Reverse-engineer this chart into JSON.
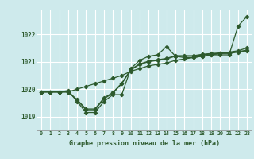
{
  "title": "Graphe pression niveau de la mer (hPa)",
  "bg_color": "#ceeaec",
  "grid_color": "#b8d8db",
  "line_color": "#2d5a2d",
  "xlim": [
    -0.5,
    23.5
  ],
  "ylim": [
    1018.5,
    1022.9
  ],
  "yticks": [
    1019,
    1020,
    1021,
    1022
  ],
  "xticks": [
    0,
    1,
    2,
    3,
    4,
    5,
    6,
    7,
    8,
    9,
    10,
    11,
    12,
    13,
    14,
    15,
    16,
    17,
    18,
    19,
    20,
    21,
    22,
    23
  ],
  "series1_x": [
    0,
    1,
    2,
    3,
    4,
    5,
    6,
    7,
    8,
    9,
    10,
    11,
    12,
    13,
    14,
    15,
    16,
    17,
    18,
    19,
    20,
    21,
    22,
    23
  ],
  "series1_y": [
    1019.9,
    1019.9,
    1019.9,
    1019.95,
    1019.55,
    1019.15,
    1019.15,
    1019.55,
    1019.8,
    1019.8,
    1020.75,
    1021.05,
    1021.2,
    1021.25,
    1021.55,
    1021.2,
    1021.15,
    1021.15,
    1021.2,
    1021.25,
    1021.25,
    1021.25,
    1022.3,
    1022.65
  ],
  "series2_x": [
    0,
    1,
    2,
    3,
    4,
    5,
    6,
    7,
    8,
    9,
    10,
    11,
    12,
    13,
    14,
    15,
    16,
    17,
    18,
    19,
    20,
    21,
    22,
    23
  ],
  "series2_y": [
    1019.9,
    1019.9,
    1019.9,
    1019.9,
    1019.6,
    1019.25,
    1019.25,
    1019.65,
    1019.85,
    1020.2,
    1020.7,
    1020.9,
    1021.0,
    1021.05,
    1021.1,
    1021.2,
    1021.2,
    1021.2,
    1021.25,
    1021.28,
    1021.3,
    1021.3,
    1021.35,
    1021.4
  ],
  "series3_x": [
    0,
    1,
    2,
    3,
    4,
    5,
    6,
    7,
    8,
    9,
    10,
    11,
    12,
    13,
    14,
    15,
    16,
    17,
    18,
    19,
    20,
    21,
    22,
    23
  ],
  "series3_y": [
    1019.9,
    1019.9,
    1019.9,
    1019.9,
    1019.62,
    1019.28,
    1019.28,
    1019.68,
    1019.88,
    1020.22,
    1020.72,
    1020.92,
    1021.02,
    1021.07,
    1021.12,
    1021.22,
    1021.22,
    1021.22,
    1021.27,
    1021.3,
    1021.32,
    1021.32,
    1021.37,
    1021.42
  ],
  "series4_x": [
    0,
    1,
    2,
    3,
    4,
    5,
    6,
    7,
    8,
    9,
    10,
    11,
    12,
    13,
    14,
    15,
    16,
    17,
    18,
    19,
    20,
    21,
    22,
    23
  ],
  "series4_y": [
    1019.9,
    1019.9,
    1019.9,
    1019.9,
    1020.0,
    1020.1,
    1020.2,
    1020.3,
    1020.4,
    1020.5,
    1020.65,
    1020.75,
    1020.85,
    1020.9,
    1020.95,
    1021.05,
    1021.1,
    1021.15,
    1021.2,
    1021.25,
    1021.3,
    1021.35,
    1021.4,
    1021.5
  ]
}
